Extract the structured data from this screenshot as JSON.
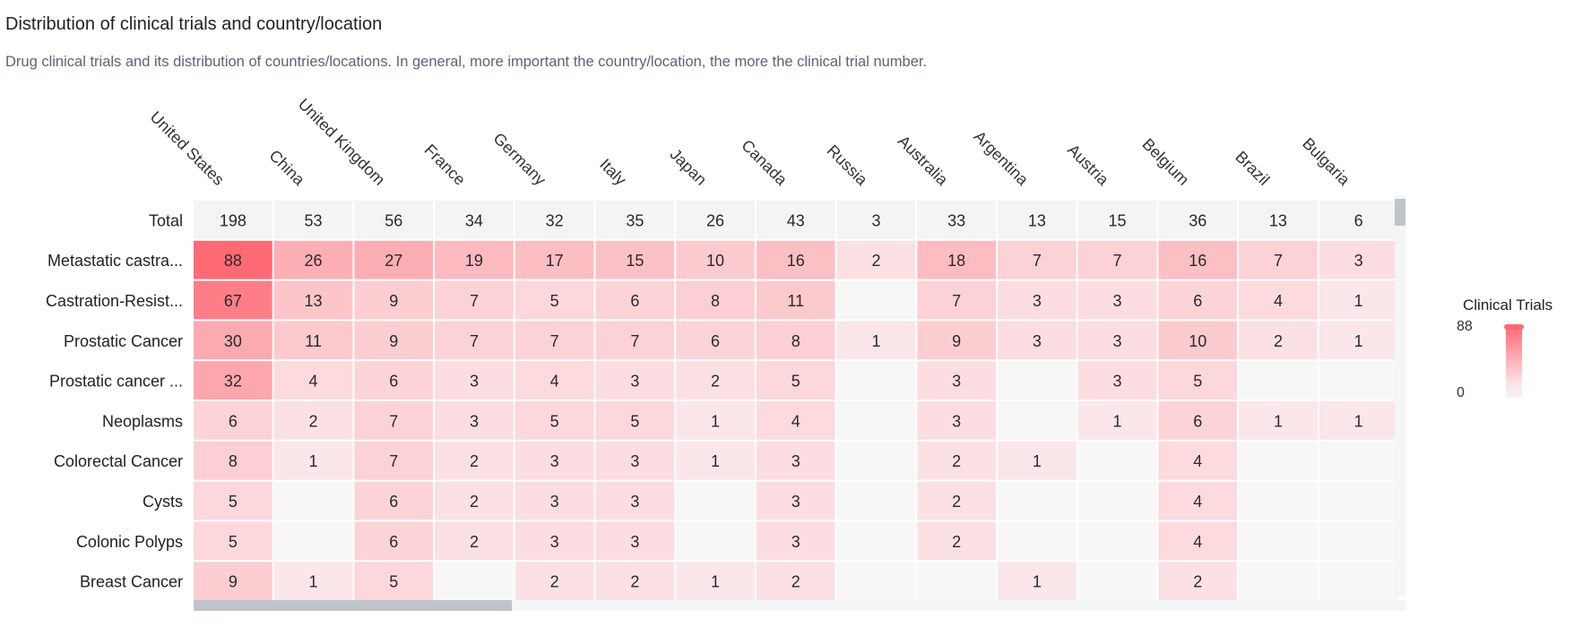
{
  "header": {
    "title": "Distribution of clinical trials and country/location",
    "subtitle": "Drug clinical trials and its distribution of countries/locations. In general, more important the country/location, the more the clinical trial number."
  },
  "legend": {
    "title": "Clinical Trials",
    "max_label": "88",
    "min_label": "0"
  },
  "colors": {
    "high": "#ff6a75",
    "low": "#fbeff1",
    "empty": "#f7f7f8",
    "total_row": "#f3f4f6"
  },
  "chart_data": {
    "type": "heatmap",
    "columns": [
      "United States",
      "China",
      "United Kingdom",
      "France",
      "Germany",
      "Italy",
      "Japan",
      "Canada",
      "Russia",
      "Australia",
      "Argentina",
      "Austria",
      "Belgium",
      "Brazil",
      "Bulgaria"
    ],
    "rows": [
      "Total",
      "Metastatic castra...",
      "Castration-Resist...",
      "Prostatic Cancer",
      "Prostatic cancer ...",
      "Neoplasms",
      "Colorectal Cancer",
      "Cysts",
      "Colonic Polyps",
      "Breast Cancer"
    ],
    "values": [
      [
        198,
        53,
        56,
        34,
        32,
        35,
        26,
        43,
        3,
        33,
        13,
        15,
        36,
        13,
        6
      ],
      [
        88,
        26,
        27,
        19,
        17,
        15,
        10,
        16,
        2,
        18,
        7,
        7,
        16,
        7,
        3
      ],
      [
        67,
        13,
        9,
        7,
        5,
        6,
        8,
        11,
        null,
        7,
        3,
        3,
        6,
        4,
        1
      ],
      [
        30,
        11,
        9,
        7,
        7,
        7,
        6,
        8,
        1,
        9,
        3,
        3,
        10,
        2,
        1
      ],
      [
        32,
        4,
        6,
        3,
        4,
        3,
        2,
        5,
        null,
        3,
        null,
        3,
        5,
        null,
        null
      ],
      [
        6,
        2,
        7,
        3,
        5,
        5,
        1,
        4,
        null,
        3,
        null,
        1,
        6,
        1,
        1
      ],
      [
        8,
        1,
        7,
        2,
        3,
        3,
        1,
        3,
        null,
        2,
        1,
        null,
        4,
        null,
        null
      ],
      [
        5,
        null,
        6,
        2,
        3,
        3,
        null,
        3,
        null,
        2,
        null,
        null,
        4,
        null,
        null
      ],
      [
        5,
        null,
        6,
        2,
        3,
        3,
        null,
        3,
        null,
        2,
        null,
        null,
        4,
        null,
        null
      ],
      [
        9,
        1,
        5,
        null,
        2,
        2,
        1,
        2,
        null,
        null,
        1,
        null,
        2,
        null,
        null
      ]
    ],
    "color_range": [
      0,
      88
    ]
  }
}
